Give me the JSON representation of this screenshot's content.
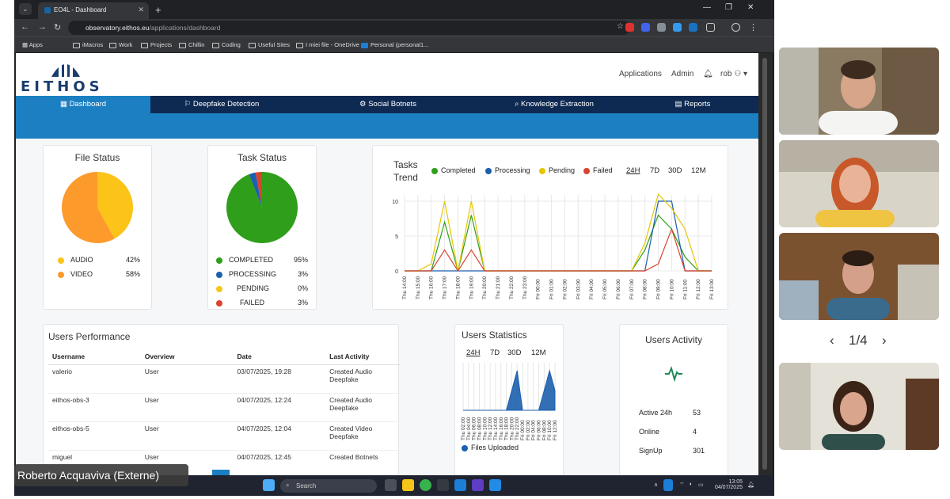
{
  "browser": {
    "tab_title": "EO4L - Dashboard",
    "url_domain": "observatory.eithos.eu",
    "url_path": "/applications/dashboard",
    "bookmarks": [
      "Apps",
      "iMacros",
      "Work",
      "Projects",
      "Chillin",
      "Coding",
      "Useful Sites",
      "I miei file - OneDrive",
      "Personal (personal1..."
    ]
  },
  "app": {
    "logo_text": "EITHOS",
    "header_links": [
      "Applications",
      "Admin"
    ],
    "user": "rob",
    "nav": [
      {
        "label": "Dashboard",
        "icon": "dashboard-icon"
      },
      {
        "label": "Deepfake Detection",
        "icon": "deepfake-icon"
      },
      {
        "label": "Social Botnets",
        "icon": "botnet-icon"
      },
      {
        "label": "Knowledge Extraction",
        "icon": "knowledge-icon"
      },
      {
        "label": "Reports",
        "icon": "report-icon"
      }
    ]
  },
  "file_status": {
    "title": "File Status",
    "items": [
      {
        "label": "AUDIO",
        "value": "42%",
        "color": "#fcc419"
      },
      {
        "label": "VIDEO",
        "value": "58%",
        "color": "#fd9a2c"
      }
    ]
  },
  "task_status": {
    "title": "Task Status",
    "items": [
      {
        "label": "COMPLETED",
        "value": "95%",
        "color": "#2f9e1a"
      },
      {
        "label": "PROCESSING",
        "value": "3%",
        "color": "#1c5fad"
      },
      {
        "label": "PENDING",
        "value": "0%",
        "color": "#f5c518"
      },
      {
        "label": "FAILED",
        "value": "3%",
        "color": "#d9432f"
      }
    ]
  },
  "tasks_trend": {
    "title_line1": "Tasks",
    "title_line2": "Trend",
    "legend": [
      {
        "label": "Completed",
        "color": "#2f9e1a"
      },
      {
        "label": "Processing",
        "color": "#1c5fad"
      },
      {
        "label": "Pending",
        "color": "#e6c600"
      },
      {
        "label": "Failed",
        "color": "#d9432f"
      }
    ],
    "ranges": [
      "24H",
      "7D",
      "30D",
      "12M"
    ]
  },
  "chart_data": [
    {
      "type": "line",
      "x": [
        "Thu 14:00",
        "Thu 15:00",
        "Thu 16:00",
        "Thu 17:00",
        "Thu 18:00",
        "Thu 19:00",
        "Thu 20:00",
        "Thu 21:00",
        "Thu 22:00",
        "Thu 23:00",
        "Fri 00:00",
        "Fri 01:00",
        "Fri 02:00",
        "Fri 03:00",
        "Fri 04:00",
        "Fri 05:00",
        "Fri 06:00",
        "Fri 07:00",
        "Fri 08:00",
        "Fri 09:00",
        "Fri 10:00",
        "Fri 11:00",
        "Fri 12:00",
        "Fri 13:00"
      ],
      "ylim": [
        0,
        10
      ],
      "yticks": [
        0,
        5,
        10
      ],
      "grid": true,
      "series": [
        {
          "name": "Completed",
          "color": "#2f9e1a",
          "values": [
            0,
            0,
            0,
            7,
            0,
            8,
            0,
            0,
            0,
            0,
            0,
            0,
            0,
            0,
            0,
            0,
            0,
            0,
            3,
            8,
            6,
            2,
            0,
            0
          ]
        },
        {
          "name": "Processing",
          "color": "#1c5fad",
          "values": [
            0,
            0,
            0,
            0,
            0,
            0,
            0,
            0,
            0,
            0,
            0,
            0,
            0,
            0,
            0,
            0,
            0,
            0,
            0,
            10,
            10,
            0,
            0,
            0
          ]
        },
        {
          "name": "Pending",
          "color": "#e6c600",
          "values": [
            0,
            0,
            1,
            10,
            0,
            10,
            0,
            0,
            0,
            0,
            0,
            0,
            0,
            0,
            0,
            0,
            0,
            0,
            4,
            11,
            9,
            6,
            0,
            0
          ]
        },
        {
          "name": "Failed",
          "color": "#d9432f",
          "values": [
            0,
            0,
            0,
            3,
            0,
            3,
            0,
            0,
            0,
            0,
            0,
            0,
            0,
            0,
            0,
            0,
            0,
            0,
            0,
            1,
            6,
            0,
            0,
            0
          ]
        }
      ]
    },
    {
      "type": "area",
      "x": [
        "Thu 02:00",
        "Thu 04:00",
        "Thu 06:00",
        "Thu 08:00",
        "Thu 10:00",
        "Thu 12:00",
        "Thu 14:00",
        "Thu 16:00",
        "Thu 18:00",
        "Thu 20:00",
        "Thu 22:00",
        "Fri 00:00",
        "Fri 02:00",
        "Fri 04:00",
        "Fri 06:00",
        "Fri 08:00",
        "Fri 10:00",
        "Fri 12:00"
      ],
      "grid": true,
      "series": [
        {
          "name": "Files Uploaded",
          "color": "#1c5fad",
          "values": [
            0,
            0,
            0,
            0,
            0,
            0,
            0,
            0,
            0,
            1,
            2,
            0,
            0,
            0,
            0,
            1,
            2,
            1
          ]
        }
      ]
    }
  ],
  "users_performance": {
    "title": "Users Performance",
    "columns": [
      "Username",
      "Overview",
      "Date",
      "Last Activity"
    ],
    "rows": [
      [
        "valerio",
        "User",
        "03/07/2025, 19:28",
        "Created Audio Deepfake"
      ],
      [
        "eithos-obs-3",
        "User",
        "04/07/2025, 12:24",
        "Created Audio Deepfake"
      ],
      [
        "eithos-obs-5",
        "User",
        "04/07/2025, 12:04",
        "Created Video Deepfake"
      ],
      [
        "miguel",
        "User",
        "04/07/2025, 12:45",
        "Created Botnets"
      ]
    ]
  },
  "users_statistics": {
    "title": "Users Statistics",
    "ranges": [
      "24H",
      "7D",
      "30D",
      "12M"
    ],
    "legend": "Files Uploaded"
  },
  "users_activity": {
    "title": "Users Activity",
    "stats": [
      {
        "label": "Active 24h",
        "value": "53"
      },
      {
        "label": "Online",
        "value": "4"
      },
      {
        "label": "SignUp",
        "value": "301"
      }
    ]
  },
  "taskbar": {
    "search": "Search",
    "time": "13:05",
    "date": "04/07/2025"
  },
  "meeting": {
    "speaker_name": "Roberto Acquaviva (Externe)",
    "pager": "1/4"
  }
}
